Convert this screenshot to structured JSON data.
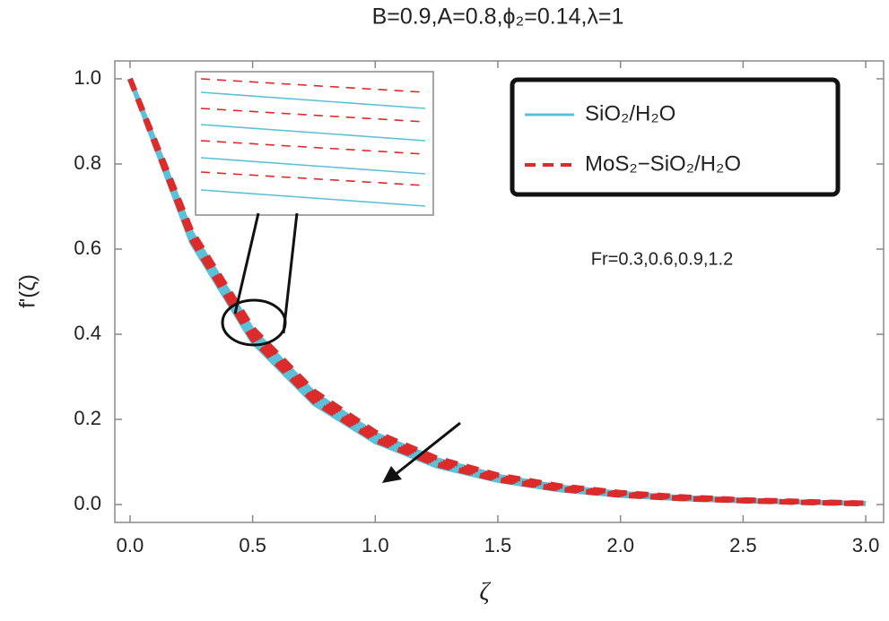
{
  "chart_data": {
    "type": "line",
    "title": "B=0.9,A=0.8,ϕ₂=0.14,λ=1",
    "x_label": "ζ",
    "y_label": "f'(ζ)",
    "annotation": "Fr=0.3,0.6,0.9,1.2",
    "x": [
      0,
      0.25,
      0.5,
      0.75,
      1.0,
      1.25,
      1.5,
      1.75,
      2.0,
      2.25,
      2.5,
      2.75,
      3.0
    ],
    "series": [
      {
        "name": "SiO₂/H₂O",
        "color": "#5bc0d8",
        "dashed": false,
        "values": [
          1,
          0.64,
          0.41,
          0.262,
          0.166,
          0.106,
          0.067,
          0.042,
          0.027,
          0.017,
          0.011,
          0.006,
          0.003
        ]
      },
      {
        "color": "#5bc0d8",
        "dashed": false,
        "values": [
          1,
          0.632,
          0.4,
          0.253,
          0.159,
          0.1,
          0.063,
          0.039,
          0.025,
          0.016,
          0.01,
          0.006,
          0.003
        ]
      },
      {
        "color": "#5bc0d8",
        "dashed": false,
        "values": [
          1,
          0.624,
          0.391,
          0.245,
          0.153,
          0.095,
          0.059,
          0.037,
          0.023,
          0.014,
          0.009,
          0.005,
          0.002
        ]
      },
      {
        "color": "#5bc0d8",
        "dashed": false,
        "values": [
          1,
          0.616,
          0.382,
          0.237,
          0.147,
          0.09,
          0.056,
          0.034,
          0.021,
          0.013,
          0.008,
          0.005,
          0.002
        ]
      },
      {
        "name": "MoS₂−SiO₂/H₂O",
        "color": "#dc2b2b",
        "dashed": true,
        "values": [
          1,
          0.644,
          0.414,
          0.266,
          0.17,
          0.109,
          0.069,
          0.044,
          0.028,
          0.018,
          0.011,
          0.007,
          0.003
        ]
      },
      {
        "color": "#dc2b2b",
        "dashed": true,
        "values": [
          1,
          0.637,
          0.405,
          0.258,
          0.163,
          0.103,
          0.065,
          0.041,
          0.026,
          0.016,
          0.01,
          0.006,
          0.003
        ]
      },
      {
        "color": "#dc2b2b",
        "dashed": true,
        "values": [
          1,
          0.63,
          0.397,
          0.25,
          0.157,
          0.098,
          0.061,
          0.038,
          0.024,
          0.015,
          0.009,
          0.005,
          0.002
        ]
      },
      {
        "color": "#dc2b2b",
        "dashed": true,
        "values": [
          1,
          0.623,
          0.388,
          0.242,
          0.151,
          0.094,
          0.058,
          0.036,
          0.022,
          0.014,
          0.009,
          0.005,
          0.002
        ]
      }
    ],
    "xlim": [
      -0.062,
      3.073
    ],
    "ylim": [
      -0.042,
      1.042
    ],
    "xticks": [
      {
        "value": 0,
        "label": "0.0"
      },
      0.5,
      {
        "value": 1,
        "label": "1.0"
      },
      1.5,
      {
        "value": 2,
        "label": "2.0"
      },
      2.5,
      {
        "value": 3,
        "label": "3.0"
      }
    ],
    "yticks": [
      {
        "value": 0,
        "label": "0.0"
      },
      0.2,
      0.4,
      0.6,
      0.8,
      {
        "value": 1,
        "label": "1.0"
      }
    ],
    "grid": false,
    "legend": "upper right"
  }
}
